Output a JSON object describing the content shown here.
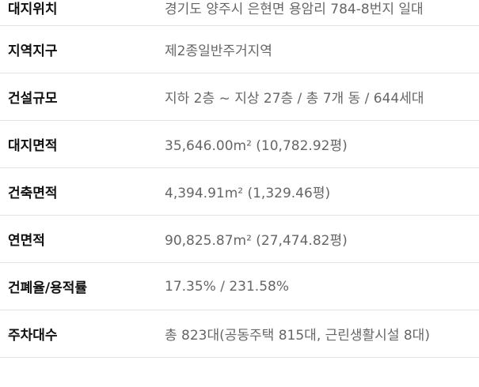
{
  "specs": [
    {
      "label": "대지위치",
      "value": "경기도 양주시 은현면 용암리 784-8번지 일대"
    },
    {
      "label": "지역지구",
      "value": "제2종일반주거지역"
    },
    {
      "label": "건설규모",
      "value": "지하 2층 ~ 지상 27층 / 총 7개 동 / 644세대"
    },
    {
      "label": "대지면적",
      "value": "35,646.00m² (10,782.92평)"
    },
    {
      "label": "건축면적",
      "value": "4,394.91m² (1,329.46평)"
    },
    {
      "label": "연면적",
      "value": "90,825.87m² (27,474.82평)"
    },
    {
      "label": "건폐율/용적률",
      "value": "17.35% / 231.58%"
    },
    {
      "label": "주차대수",
      "value": "총 823대(공동주택 815대, 근린생활시설 8대)"
    }
  ]
}
